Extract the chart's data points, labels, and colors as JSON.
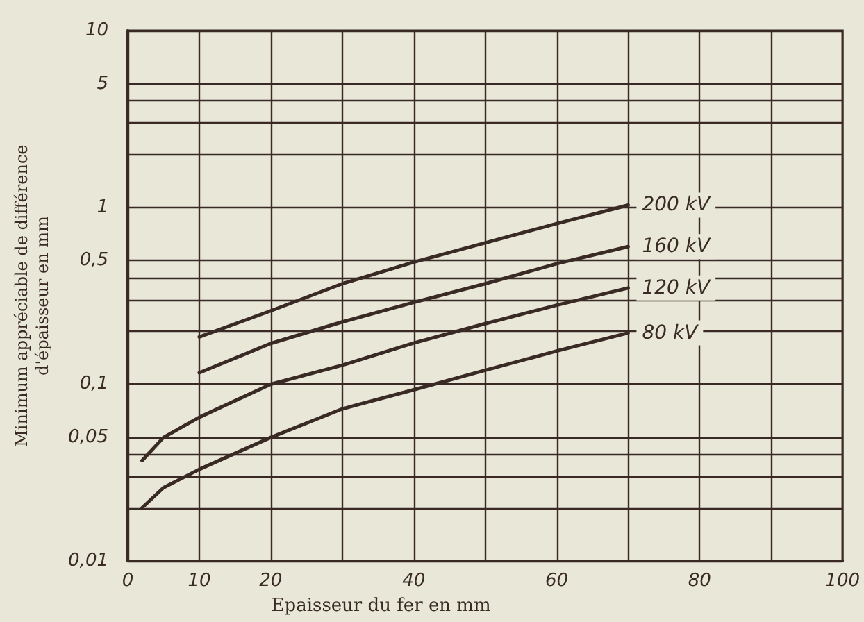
{
  "chart_data": {
    "type": "line",
    "xlabel": "Epaisseur du fer en mm",
    "ylabel": "Minimum appréciable de différence\nd'épaisseur en mm",
    "log": "y",
    "grid": true,
    "legend": false,
    "marker": "none",
    "line_style": "solid",
    "xlim": [
      0,
      100
    ],
    "xticks": [
      0,
      10,
      20,
      {
        "value": 30,
        "label": null
      },
      40,
      {
        "value": 50,
        "label": null
      },
      60,
      {
        "value": 70,
        "label": null
      },
      80,
      {
        "value": 90,
        "label": null
      },
      100
    ],
    "ylim": [
      0.01,
      10
    ],
    "yticks": [
      {
        "value": 0.01,
        "label": "0,01"
      },
      {
        "value": 0.02,
        "label": null
      },
      {
        "value": 0.03,
        "label": null
      },
      {
        "value": 0.04,
        "label": null
      },
      {
        "value": 0.05,
        "label": "0,05"
      },
      {
        "value": 0.1,
        "label": "0,1"
      },
      {
        "value": 0.2,
        "label": null
      },
      {
        "value": 0.3,
        "label": null
      },
      {
        "value": 0.4,
        "label": null
      },
      {
        "value": 0.5,
        "label": "0,5"
      },
      1,
      {
        "value": 2,
        "label": null
      },
      {
        "value": 3,
        "label": null
      },
      {
        "value": 4,
        "label": null
      },
      5,
      10
    ],
    "series": [
      {
        "name": "200 kV",
        "color": "#3a2a25",
        "x": [
          10,
          20,
          30,
          40,
          50,
          60,
          70
        ],
        "values": [
          0.185,
          0.26,
          0.37,
          0.49,
          0.63,
          0.81,
          1.03
        ]
      },
      {
        "name": "160 kV",
        "color": "#3a2a25",
        "x": [
          10,
          20,
          30,
          40,
          50,
          60,
          70
        ],
        "values": [
          0.116,
          0.17,
          0.225,
          0.29,
          0.37,
          0.48,
          0.6
        ]
      },
      {
        "name": "120 kV",
        "color": "#3a2a25",
        "x": [
          2,
          5,
          10,
          20,
          30,
          40,
          50,
          60,
          70
        ],
        "values": [
          0.037,
          0.05,
          0.065,
          0.1,
          0.128,
          0.171,
          0.22,
          0.28,
          0.35
        ]
      },
      {
        "name": "80 kV",
        "color": "#3a2a25",
        "x": [
          2,
          5,
          10,
          20,
          30,
          40,
          50,
          60,
          70
        ],
        "values": [
          0.02,
          0.026,
          0.033,
          0.05,
          0.0725,
          0.093,
          0.12,
          0.154,
          0.195
        ]
      }
    ]
  }
}
